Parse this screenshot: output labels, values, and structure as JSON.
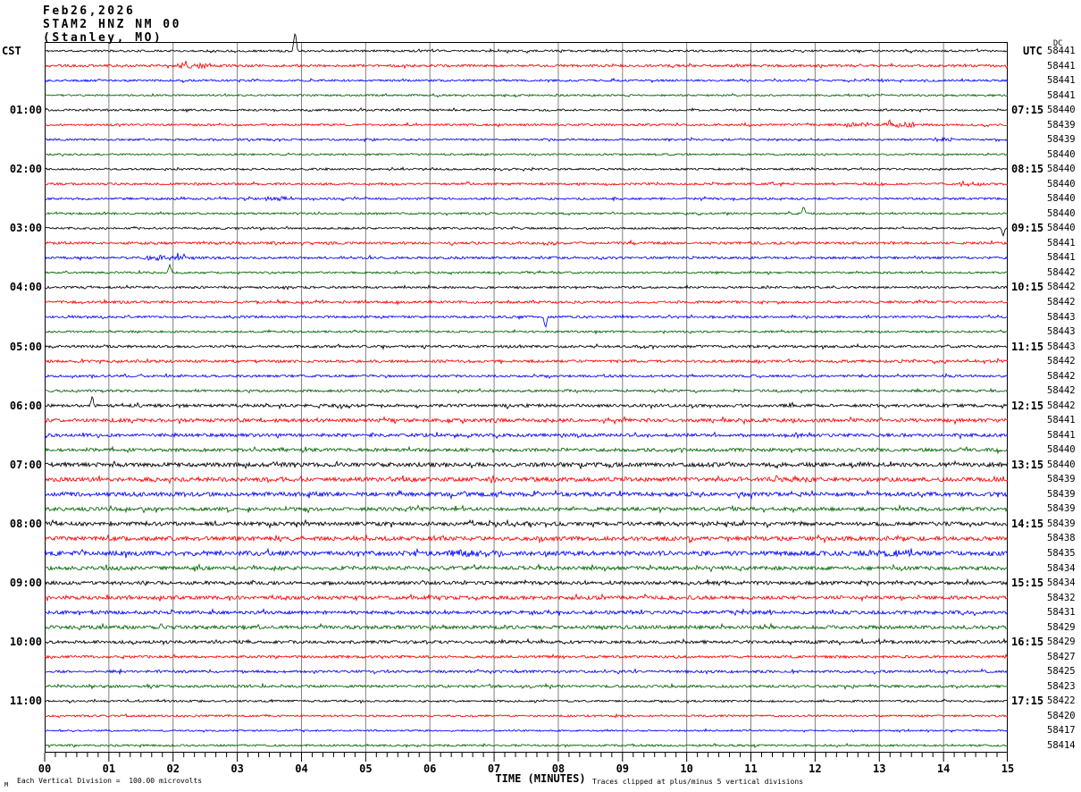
{
  "header": {
    "date": "Feb26,2026",
    "station": "STAM2 HNZ NM 00",
    "location": "(Stanley, MO)"
  },
  "axes": {
    "left_timezone": "CST",
    "right_timezone": "UTC",
    "dc_label": "DC",
    "x_title": "TIME (MINUTES)",
    "x_ticks": [
      "00",
      "01",
      "02",
      "03",
      "04",
      "05",
      "06",
      "07",
      "08",
      "09",
      "10",
      "11",
      "12",
      "13",
      "14",
      "15"
    ],
    "footnote_left": "Each Vertical Division =  100.00 microvolts",
    "footnote_right": "Traces clipped at plus/minus 5 vertical divisions",
    "watermark": "M"
  },
  "colors": {
    "black": "#000000",
    "red": "#ff0000",
    "blue": "#0000ff",
    "green": "#006400",
    "grid": "#7f7f7f",
    "border": "#000000"
  },
  "chart_data": {
    "type": "line",
    "subtype": "helicorder-seismogram",
    "title": "STAM2 HNZ NM 00 (Stanley, MO) Feb26,2026",
    "xlabel": "TIME (MINUTES)",
    "x_range_minutes": [
      0,
      15
    ],
    "minutes_per_row": 15,
    "rows_per_hour": 4,
    "grid": "vertical lines at each minute",
    "legend_position": "none",
    "note": "amp = visual noise half-amplitude in px; spikes dy>0 = upward; dc = right-margin DC level per 15-min trace",
    "rows": [
      {
        "color": "black",
        "dc": "58441",
        "amp": 1.1,
        "spikes": [
          {
            "m": 3.9,
            "dy": 22
          }
        ]
      },
      {
        "color": "red",
        "dc": "58441",
        "amp": 1.4,
        "bursts": [
          {
            "m": 2.35,
            "w": 0.5,
            "g": 2.2
          }
        ]
      },
      {
        "color": "blue",
        "dc": "58441",
        "amp": 1.1
      },
      {
        "color": "green",
        "dc": "58441",
        "amp": 1.0
      },
      {
        "cst": "01:00",
        "utc": "07:15",
        "color": "black",
        "dc": "58440",
        "amp": 1.1
      },
      {
        "color": "red",
        "dc": "58439",
        "amp": 1.2,
        "bursts": [
          {
            "m": 12.65,
            "w": 0.35,
            "g": 2.5
          },
          {
            "m": 13.3,
            "w": 0.5,
            "g": 2.4
          }
        ],
        "spikes": [
          {
            "m": 13.15,
            "dy": 4
          }
        ]
      },
      {
        "color": "blue",
        "dc": "58439",
        "amp": 1.1,
        "bursts": [
          {
            "m": 14.0,
            "w": 0.3,
            "g": 2.0
          }
        ]
      },
      {
        "color": "green",
        "dc": "58440",
        "amp": 1.0
      },
      {
        "cst": "02:00",
        "utc": "08:15",
        "color": "black",
        "dc": "58440",
        "amp": 1.1
      },
      {
        "color": "red",
        "dc": "58440",
        "amp": 1.2,
        "bursts": [
          {
            "m": 14.4,
            "w": 0.4,
            "g": 2.5
          }
        ]
      },
      {
        "color": "blue",
        "dc": "58440",
        "amp": 1.2,
        "bursts": [
          {
            "m": 3.6,
            "w": 0.5,
            "g": 2.0
          }
        ]
      },
      {
        "color": "green",
        "dc": "58440",
        "amp": 1.1,
        "spikes": [
          {
            "m": 11.82,
            "dy": 7
          }
        ]
      },
      {
        "cst": "03:00",
        "utc": "09:15",
        "color": "black",
        "dc": "58440",
        "amp": 1.1,
        "spikes": [
          {
            "m": 14.93,
            "dy": -8
          }
        ]
      },
      {
        "color": "red",
        "dc": "58441",
        "amp": 1.4
      },
      {
        "color": "blue",
        "dc": "58441",
        "amp": 1.3,
        "bursts": [
          {
            "m": 1.9,
            "w": 0.6,
            "g": 2.2
          }
        ]
      },
      {
        "color": "green",
        "dc": "58442",
        "amp": 1.1,
        "spikes": [
          {
            "m": 1.95,
            "dy": 9
          }
        ]
      },
      {
        "cst": "04:00",
        "utc": "10:15",
        "color": "black",
        "dc": "58442",
        "amp": 1.2
      },
      {
        "color": "red",
        "dc": "58442",
        "amp": 1.4
      },
      {
        "color": "blue",
        "dc": "58443",
        "amp": 1.2,
        "spikes": [
          {
            "m": 7.8,
            "dy": -12
          }
        ]
      },
      {
        "color": "green",
        "dc": "58443",
        "amp": 1.1
      },
      {
        "cst": "05:00",
        "utc": "11:15",
        "color": "black",
        "dc": "58443",
        "amp": 1.4
      },
      {
        "color": "red",
        "dc": "58442",
        "amp": 1.5
      },
      {
        "color": "blue",
        "dc": "58442",
        "amp": 1.3
      },
      {
        "color": "green",
        "dc": "58442",
        "amp": 1.3
      },
      {
        "cst": "06:00",
        "utc": "12:15",
        "color": "black",
        "dc": "58442",
        "amp": 1.7,
        "spikes": [
          {
            "m": 0.74,
            "dy": 11
          }
        ]
      },
      {
        "color": "red",
        "dc": "58441",
        "amp": 2.0
      },
      {
        "color": "blue",
        "dc": "58441",
        "amp": 1.8
      },
      {
        "color": "green",
        "dc": "58440",
        "amp": 1.8
      },
      {
        "cst": "07:00",
        "utc": "13:15",
        "color": "black",
        "dc": "58440",
        "amp": 2.3
      },
      {
        "color": "red",
        "dc": "58439",
        "amp": 2.3
      },
      {
        "color": "blue",
        "dc": "58439",
        "amp": 2.3
      },
      {
        "color": "green",
        "dc": "58439",
        "amp": 2.0
      },
      {
        "cst": "08:00",
        "utc": "14:15",
        "color": "black",
        "dc": "58439",
        "amp": 2.1
      },
      {
        "color": "red",
        "dc": "58438",
        "amp": 2.3
      },
      {
        "color": "blue",
        "dc": "58435",
        "amp": 2.5,
        "bursts": [
          {
            "m": 6.7,
            "w": 0.9,
            "g": 1.6
          },
          {
            "m": 13.1,
            "w": 0.8,
            "g": 1.5
          }
        ]
      },
      {
        "color": "green",
        "dc": "58434",
        "amp": 2.0
      },
      {
        "cst": "09:00",
        "utc": "15:15",
        "color": "black",
        "dc": "58434",
        "amp": 1.9
      },
      {
        "color": "red",
        "dc": "58432",
        "amp": 2.0
      },
      {
        "color": "blue",
        "dc": "58431",
        "amp": 1.9
      },
      {
        "color": "green",
        "dc": "58429",
        "amp": 1.9
      },
      {
        "cst": "10:00",
        "utc": "16:15",
        "color": "black",
        "dc": "58429",
        "amp": 1.7
      },
      {
        "color": "red",
        "dc": "58427",
        "amp": 1.4
      },
      {
        "color": "blue",
        "dc": "58425",
        "amp": 1.4
      },
      {
        "color": "green",
        "dc": "58423",
        "amp": 1.4
      },
      {
        "cst": "11:00",
        "utc": "17:15",
        "color": "black",
        "dc": "58422",
        "amp": 1.1
      },
      {
        "color": "red",
        "dc": "58420",
        "amp": 1.1
      },
      {
        "color": "blue",
        "dc": "58417",
        "amp": 0.9
      },
      {
        "color": "green",
        "dc": "58414",
        "amp": 1.1
      }
    ]
  }
}
